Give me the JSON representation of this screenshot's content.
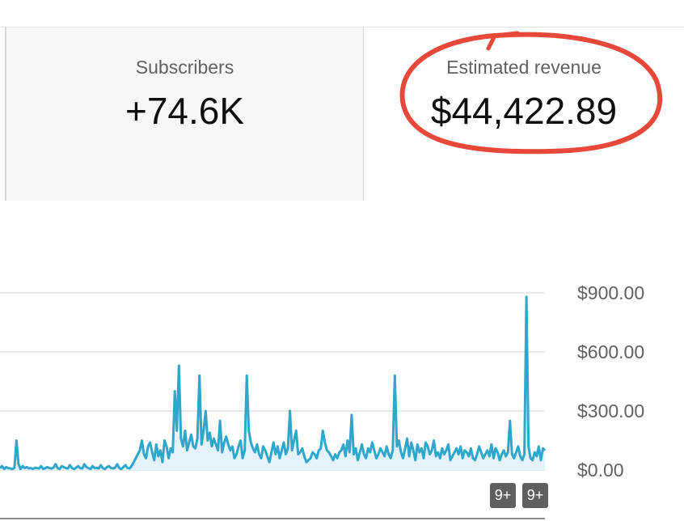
{
  "metrics": {
    "subscribers": {
      "label": "Subscribers",
      "value": "+74.6K"
    },
    "revenue": {
      "label": "Estimated revenue",
      "value": "$44,422.89"
    }
  },
  "highlight_color": "#e8483a",
  "chart_data": {
    "type": "area",
    "ylim": [
      0,
      900
    ],
    "y_ticks": [
      0,
      300,
      600,
      900
    ],
    "y_tick_labels": [
      "$0.00",
      "$300.00",
      "$600.00",
      "$900.00"
    ],
    "y_axis_side": "right",
    "grid": true,
    "line_color": "#2fa6cc",
    "fill_color": "#e3f3f9",
    "series": [
      {
        "values": [
          10,
          20,
          5,
          15,
          10,
          8,
          5,
          10,
          150,
          30,
          5,
          20,
          10,
          15,
          8,
          10,
          5,
          12,
          10,
          8,
          20,
          5,
          10,
          15,
          10,
          8,
          12,
          30,
          10,
          5,
          20,
          15,
          10,
          8,
          25,
          10,
          5,
          12,
          20,
          10,
          8,
          30,
          15,
          10,
          5,
          20,
          10,
          12,
          8,
          25,
          10,
          5,
          15,
          20,
          10,
          8,
          12,
          30,
          10,
          5,
          15,
          25,
          10,
          8,
          20,
          40,
          60,
          80,
          100,
          150,
          80,
          60,
          120,
          140,
          90,
          50,
          130,
          70,
          100,
          40,
          150,
          120,
          60,
          110,
          90,
          400,
          200,
          530,
          160,
          120,
          200,
          100,
          140,
          180,
          120,
          110,
          160,
          480,
          130,
          200,
          300,
          150,
          190,
          120,
          160,
          130,
          100,
          250,
          90,
          140,
          170,
          130,
          100,
          120,
          60,
          80,
          120,
          150,
          60,
          100,
          480,
          200,
          140,
          110,
          90,
          130,
          80,
          60,
          120,
          100,
          70,
          40,
          90,
          140,
          80,
          120,
          60,
          100,
          140,
          80,
          110,
          300,
          100,
          150,
          200,
          80,
          90,
          110,
          70,
          40,
          50,
          60,
          90,
          80,
          60,
          100,
          110,
          200,
          140,
          100,
          90,
          70,
          50,
          80,
          60,
          90,
          100,
          130,
          70,
          150,
          90,
          280,
          80,
          110,
          50,
          90,
          130,
          80,
          60,
          110,
          90,
          140,
          100,
          60,
          80,
          110,
          90,
          70,
          120,
          80,
          60,
          100,
          480,
          120,
          150,
          90,
          60,
          110,
          160,
          70,
          140,
          100,
          50,
          130,
          90,
          110,
          60,
          140,
          120,
          80,
          100,
          150,
          70,
          90,
          60,
          110,
          80,
          100,
          130,
          50,
          70,
          90,
          110,
          80,
          120,
          60,
          100,
          90,
          70,
          110,
          60,
          50,
          80,
          120,
          90,
          60,
          80,
          100,
          70,
          130,
          60,
          110,
          90,
          50,
          80,
          100,
          70,
          90,
          250,
          80,
          60,
          90,
          120,
          70,
          50,
          80,
          880,
          120,
          60,
          50,
          90,
          70,
          120,
          50,
          110,
          100
        ]
      }
    ]
  },
  "badges": [
    "9+",
    "9+"
  ]
}
